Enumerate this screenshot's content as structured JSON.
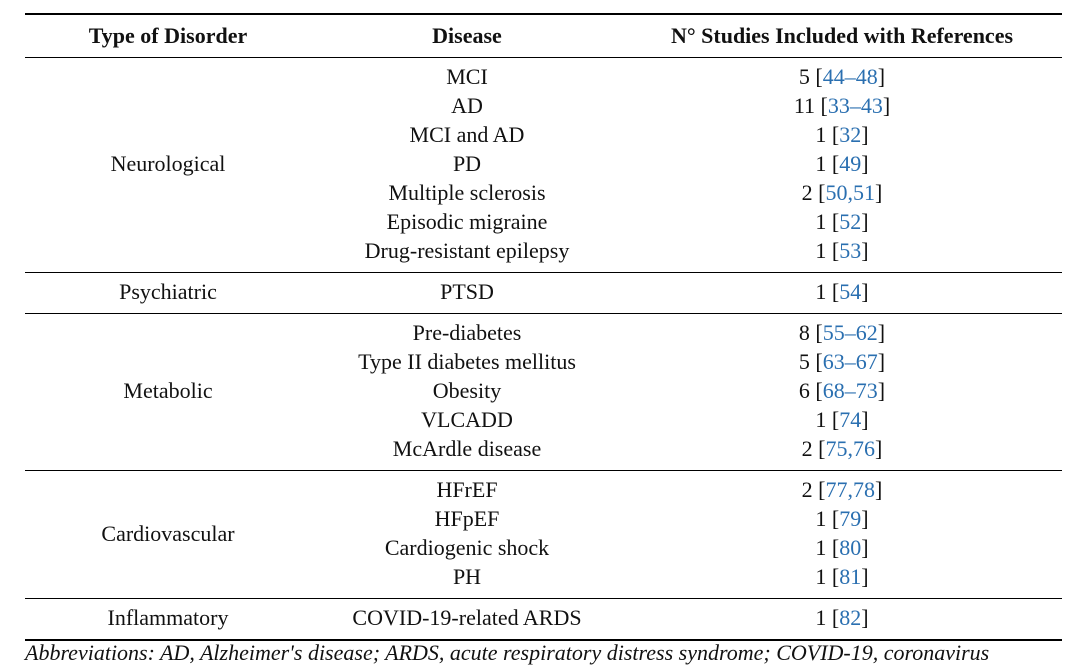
{
  "table": {
    "header": [
      "Type of Disorder",
      "Disease",
      "N° Studies Included with References"
    ],
    "groups": [
      {
        "disorder": "Neurological",
        "rows": [
          {
            "disease": "MCI",
            "studies": [
              "5 [",
              "44–48",
              "]"
            ]
          },
          {
            "disease": "AD",
            "studies": [
              "11 [",
              "33–43",
              "]"
            ]
          },
          {
            "disease": "MCI and AD",
            "studies": [
              "1 [",
              "32",
              "]"
            ]
          },
          {
            "disease": "PD",
            "studies": [
              "1 [",
              "49",
              "]"
            ]
          },
          {
            "disease": "Multiple sclerosis",
            "studies": [
              "2 [",
              "50,51",
              "]"
            ]
          },
          {
            "disease": "Episodic migraine",
            "studies": [
              "1 [",
              "52",
              "]"
            ]
          },
          {
            "disease": "Drug-resistant epilepsy",
            "studies": [
              "1 [",
              "53",
              "]"
            ]
          }
        ]
      },
      {
        "disorder": "Psychiatric",
        "rows": [
          {
            "disease": "PTSD",
            "studies": [
              "1 [",
              "54",
              "]"
            ]
          }
        ]
      },
      {
        "disorder": "Metabolic",
        "rows": [
          {
            "disease": "Pre-diabetes",
            "studies": [
              "8 [",
              "55–62",
              "]"
            ]
          },
          {
            "disease": "Type II diabetes mellitus",
            "studies": [
              "5 [",
              "63–67",
              "]"
            ]
          },
          {
            "disease": "Obesity",
            "studies": [
              "6 [",
              "68–73",
              "]"
            ]
          },
          {
            "disease": "VLCADD",
            "studies": [
              "1 [",
              "74",
              "]"
            ]
          },
          {
            "disease": "McArdle disease",
            "studies": [
              "2 [",
              "75,76",
              "]"
            ]
          }
        ]
      },
      {
        "disorder": "Cardiovascular",
        "rows": [
          {
            "disease": "HFrEF",
            "studies": [
              "2 [",
              "77,78",
              "]"
            ]
          },
          {
            "disease": "HFpEF",
            "studies": [
              "1 [",
              "79",
              "]"
            ]
          },
          {
            "disease": "Cardiogenic shock",
            "studies": [
              "1 [",
              "80",
              "]"
            ]
          },
          {
            "disease": "PH",
            "studies": [
              "1 [",
              "81",
              "]"
            ]
          }
        ]
      },
      {
        "disorder": "Inflammatory",
        "rows": [
          {
            "disease": "COVID-19-related ARDS",
            "studies": [
              "1 [",
              "82",
              "]"
            ]
          }
        ]
      }
    ]
  },
  "footnote": "Abbreviations: AD, Alzheimer's disease; ARDS, acute respiratory distress syndrome; COVID-19, coronavirus"
}
